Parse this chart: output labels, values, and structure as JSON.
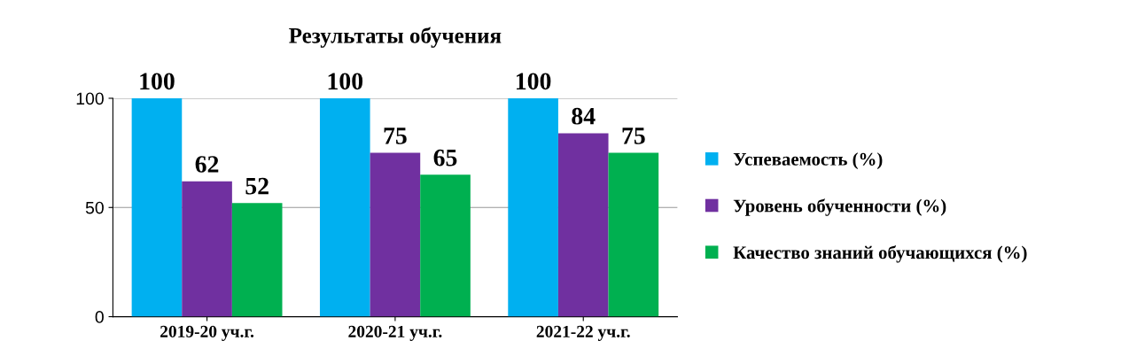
{
  "chart_data": {
    "type": "bar",
    "title": "Результаты обучения",
    "categories": [
      "2019-20 уч.г.",
      "2020-21 уч.г.",
      "2021-22 уч.г."
    ],
    "series": [
      {
        "name": "Успеваемость (%)",
        "color": "#00b0f0",
        "values": [
          100,
          100,
          100
        ]
      },
      {
        "name": "Уровень обученности (%)",
        "color": "#7030a0",
        "values": [
          62,
          75,
          84
        ]
      },
      {
        "name": "Качество знаний обучающихся (%)",
        "color": "#00b050",
        "values": [
          52,
          65,
          75
        ]
      }
    ],
    "ylim": [
      0,
      100
    ],
    "yticks": [
      0,
      50,
      100
    ],
    "grid": "y",
    "legend": "right",
    "data_labels": true
  }
}
